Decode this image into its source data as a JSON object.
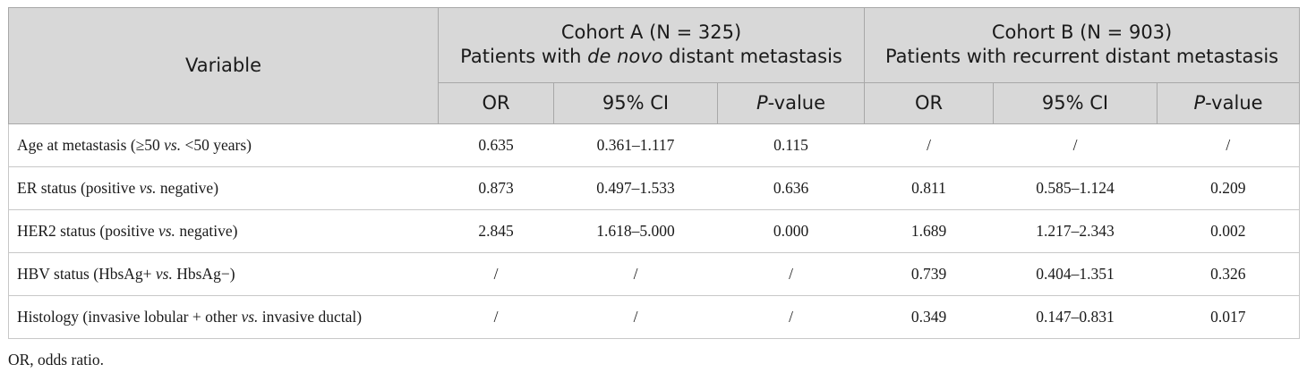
{
  "header": {
    "variable": "Variable",
    "cohort_a": {
      "line1": "Cohort A (N = 325)",
      "line2_pre": "Patients with ",
      "line2_em": "de novo",
      "line2_post": " distant metastasis"
    },
    "cohort_b": {
      "line1": "Cohort B (N = 903)",
      "line2": "Patients with recurrent distant metastasis"
    },
    "sub": {
      "or": "OR",
      "ci": "95% CI",
      "p_em": "P",
      "p_rest": "-value"
    }
  },
  "rows": [
    {
      "var_pre": "Age at metastasis (≥50 ",
      "var_em": "vs.",
      "var_post": " <50 years)",
      "a_or": "0.635",
      "a_ci": "0.361–1.117",
      "a_p": "0.115",
      "b_or": "/",
      "b_ci": "/",
      "b_p": "/"
    },
    {
      "var_pre": "ER status (positive ",
      "var_em": "vs.",
      "var_post": " negative)",
      "a_or": "0.873",
      "a_ci": "0.497–1.533",
      "a_p": "0.636",
      "b_or": "0.811",
      "b_ci": "0.585–1.124",
      "b_p": "0.209"
    },
    {
      "var_pre": "HER2 status (positive ",
      "var_em": "vs.",
      "var_post": " negative)",
      "a_or": "2.845",
      "a_ci": "1.618–5.000",
      "a_p": "0.000",
      "b_or": "1.689",
      "b_ci": "1.217–2.343",
      "b_p": "0.002"
    },
    {
      "var_pre": "HBV status (HbsAg+ ",
      "var_em": "vs.",
      "var_post": " HbsAg−)",
      "a_or": "/",
      "a_ci": "/",
      "a_p": "/",
      "b_or": "0.739",
      "b_ci": "0.404–1.351",
      "b_p": "0.326"
    },
    {
      "var_pre": "Histology (invasive lobular + other ",
      "var_em": "vs.",
      "var_post": " invasive ductal)",
      "a_or": "/",
      "a_ci": "/",
      "a_p": "/",
      "b_or": "0.349",
      "b_ci": "0.147–0.831",
      "b_p": "0.017"
    }
  ],
  "footnote": "OR, odds ratio."
}
